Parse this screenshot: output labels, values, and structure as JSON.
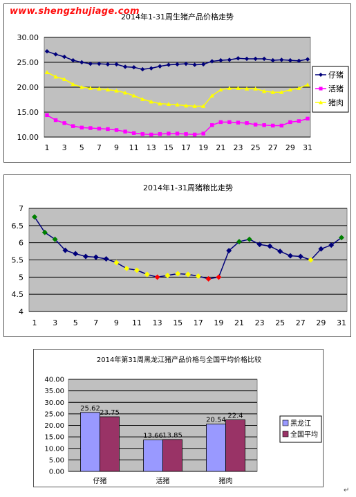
{
  "watermark": "www.shengzhujiage.com",
  "return_mark": "↵",
  "chart_data": [
    {
      "type": "line",
      "title": "2014年1-31周生猪产品价格走势",
      "x": [
        1,
        2,
        3,
        4,
        5,
        6,
        7,
        8,
        9,
        10,
        11,
        12,
        13,
        14,
        15,
        16,
        17,
        18,
        19,
        20,
        21,
        22,
        23,
        24,
        25,
        26,
        27,
        28,
        29,
        30,
        31
      ],
      "x_tick_labels": [
        "1",
        "3",
        "5",
        "7",
        "9",
        "11",
        "13",
        "15",
        "17",
        "19",
        "21",
        "23",
        "25",
        "27",
        "29",
        "31"
      ],
      "ylim": [
        10,
        30
      ],
      "y_tick_labels": [
        "10.00",
        "15.00",
        "20.00",
        "25.00",
        "30.00"
      ],
      "grid": true,
      "legend": "right",
      "series": [
        {
          "name": "仔猪",
          "color": "#00007a",
          "marker": "diamond",
          "values": [
            27.2,
            26.6,
            26.1,
            25.4,
            25.0,
            24.7,
            24.7,
            24.6,
            24.6,
            24.1,
            24.0,
            23.6,
            23.8,
            24.2,
            24.5,
            24.6,
            24.7,
            24.5,
            24.6,
            25.2,
            25.4,
            25.5,
            25.8,
            25.7,
            25.7,
            25.7,
            25.4,
            25.5,
            25.4,
            25.3,
            25.6
          ]
        },
        {
          "name": "活猪",
          "color": "#ff00ff",
          "marker": "square",
          "values": [
            14.4,
            13.4,
            12.8,
            12.2,
            11.9,
            11.8,
            11.7,
            11.6,
            11.4,
            11.1,
            10.8,
            10.6,
            10.5,
            10.6,
            10.7,
            10.7,
            10.6,
            10.5,
            10.7,
            12.4,
            13.0,
            13.0,
            12.9,
            12.8,
            12.5,
            12.4,
            12.3,
            12.3,
            13.0,
            13.2,
            13.7
          ]
        },
        {
          "name": "猪肉",
          "color": "#ffff00",
          "marker": "triangle",
          "values": [
            23.0,
            22.1,
            21.6,
            20.6,
            20.0,
            19.8,
            19.7,
            19.5,
            19.3,
            18.9,
            18.3,
            17.6,
            17.1,
            16.7,
            16.6,
            16.5,
            16.3,
            16.2,
            16.2,
            18.3,
            19.5,
            19.8,
            19.8,
            19.7,
            19.7,
            19.2,
            19.0,
            19.0,
            19.5,
            19.8,
            20.5
          ]
        }
      ]
    },
    {
      "type": "line",
      "title": "2014年1-31周猪粮比走势",
      "x": [
        1,
        2,
        3,
        4,
        5,
        6,
        7,
        8,
        9,
        10,
        11,
        12,
        13,
        14,
        15,
        16,
        17,
        18,
        19,
        20,
        21,
        22,
        23,
        24,
        25,
        26,
        27,
        28,
        29,
        30,
        31
      ],
      "x_tick_labels": [
        "1",
        "3",
        "5",
        "7",
        "9",
        "11",
        "13",
        "15",
        "17",
        "19",
        "21",
        "23",
        "25",
        "27",
        "29",
        "31"
      ],
      "ylim": [
        4,
        7
      ],
      "y_tick_labels": [
        "4",
        "4.5",
        "5",
        "5.5",
        "6",
        "6.5",
        "7"
      ],
      "grid": true,
      "line_color": "#00007a",
      "values": [
        6.75,
        6.3,
        6.1,
        5.78,
        5.68,
        5.6,
        5.58,
        5.53,
        5.42,
        5.25,
        5.2,
        5.08,
        5.0,
        5.05,
        5.1,
        5.08,
        5.03,
        4.95,
        5.0,
        5.77,
        6.03,
        6.1,
        5.95,
        5.9,
        5.75,
        5.62,
        5.6,
        5.5,
        5.82,
        5.93,
        6.15
      ],
      "marker_colors": [
        "#008000",
        "#008000",
        "#008000",
        "#00007a",
        "#00007a",
        "#00007a",
        "#00007a",
        "#00007a",
        "#ffff00",
        "#ffff00",
        "#ffff00",
        "#ffff00",
        "#ff0000",
        "#ffff00",
        "#ffff00",
        "#ffff00",
        "#ffff00",
        "#ff0000",
        "#ff0000",
        "#00007a",
        "#008000",
        "#008000",
        "#00007a",
        "#00007a",
        "#00007a",
        "#00007a",
        "#00007a",
        "#ffff00",
        "#00007a",
        "#00007a",
        "#008000"
      ]
    },
    {
      "type": "bar",
      "title": "2014年第31周黑龙江猪产品价格与全国平均价格比较",
      "categories": [
        "仔猪",
        "活猪",
        "猪肉"
      ],
      "ylim": [
        0,
        40
      ],
      "y_tick_labels": [
        "0.00",
        "5.00",
        "10.00",
        "15.00",
        "20.00",
        "25.00",
        "30.00",
        "35.00",
        "40.00"
      ],
      "grid": true,
      "legend": "right",
      "series": [
        {
          "name": "黑龙江",
          "color": "#9999ff",
          "values": [
            25.62,
            13.66,
            20.54
          ],
          "labels": [
            "25.62",
            "13.66",
            "20.54"
          ]
        },
        {
          "name": "全国平均",
          "color": "#993366",
          "values": [
            23.75,
            13.85,
            22.4
          ],
          "labels": [
            "23.75",
            "13.85",
            "22.4"
          ]
        }
      ]
    }
  ]
}
